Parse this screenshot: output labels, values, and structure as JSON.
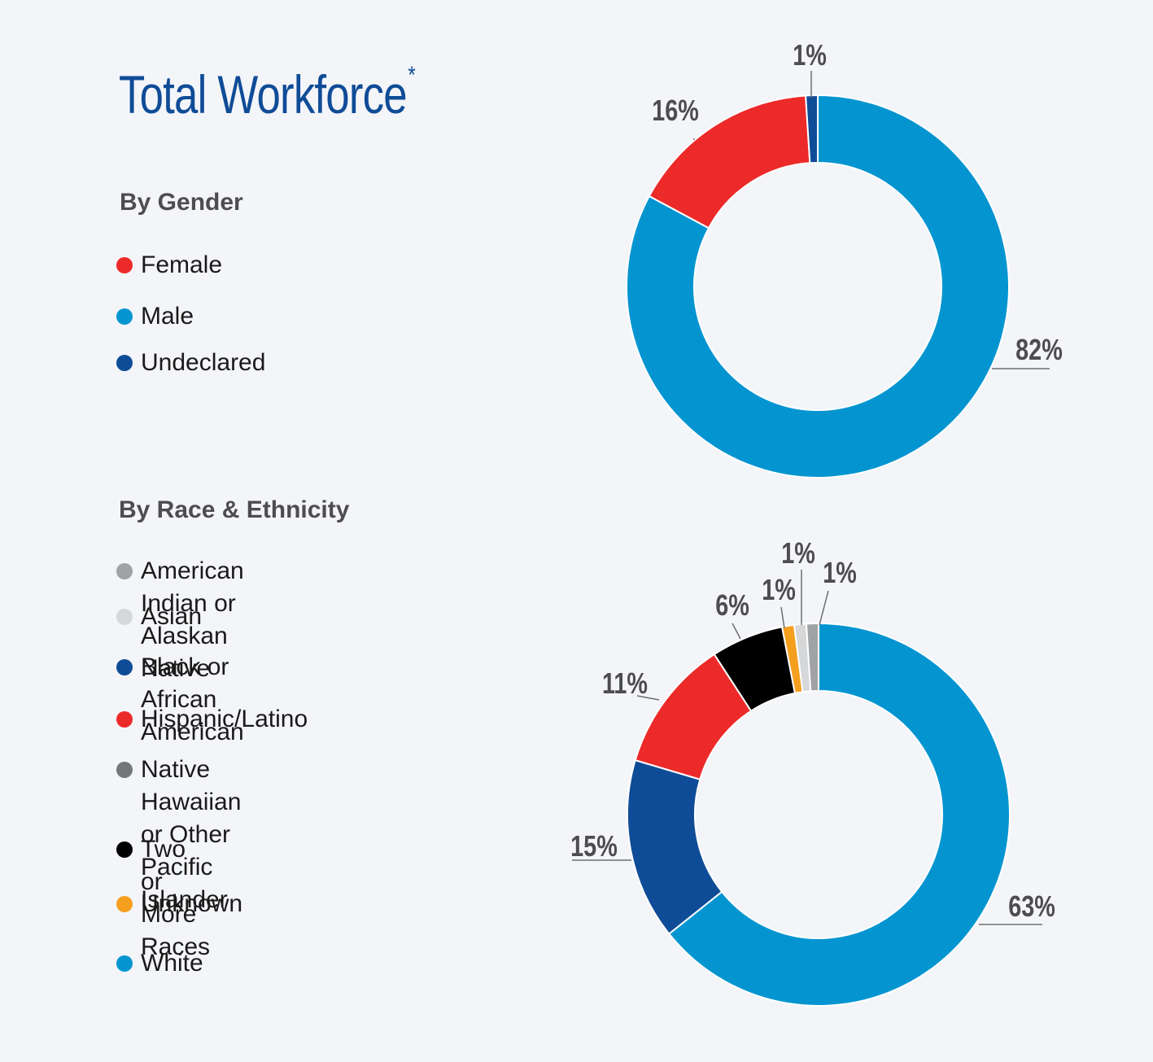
{
  "title": "Total Workforce",
  "title_marker": "*",
  "chart_data": [
    {
      "type": "pie",
      "title": "By Gender",
      "categories": [
        "Female",
        "Male",
        "Undeclared"
      ],
      "values": [
        16,
        82,
        1
      ],
      "colors": [
        "#ec2a29",
        "#0495d1",
        "#0f4c97"
      ],
      "labels": [
        "16%",
        "82%",
        "1%"
      ],
      "hole": "donut",
      "legend_position": "left"
    },
    {
      "type": "pie",
      "title": "By Race & Ethnicity",
      "categories": [
        "American Indian or Alaskan Native",
        "Asian",
        "Black or African American",
        "Hispanic/Latino",
        "Native Hawaiian or Other\nPacific Islander",
        "Two or More Races",
        "Unknown",
        "White"
      ],
      "values": [
        1,
        1,
        15,
        11,
        null,
        6,
        1,
        63
      ],
      "colors": [
        "#a0a2a6",
        "#d6d7d9",
        "#0f4c97",
        "#ec2a29",
        "#75767a",
        "#000000",
        "#f59f1f",
        "#0495d1"
      ],
      "labels": [
        "1%",
        "1%",
        "15%",
        "11%",
        "",
        "6%",
        "1%",
        "63%"
      ],
      "hole": "donut",
      "legend_position": "left"
    }
  ]
}
